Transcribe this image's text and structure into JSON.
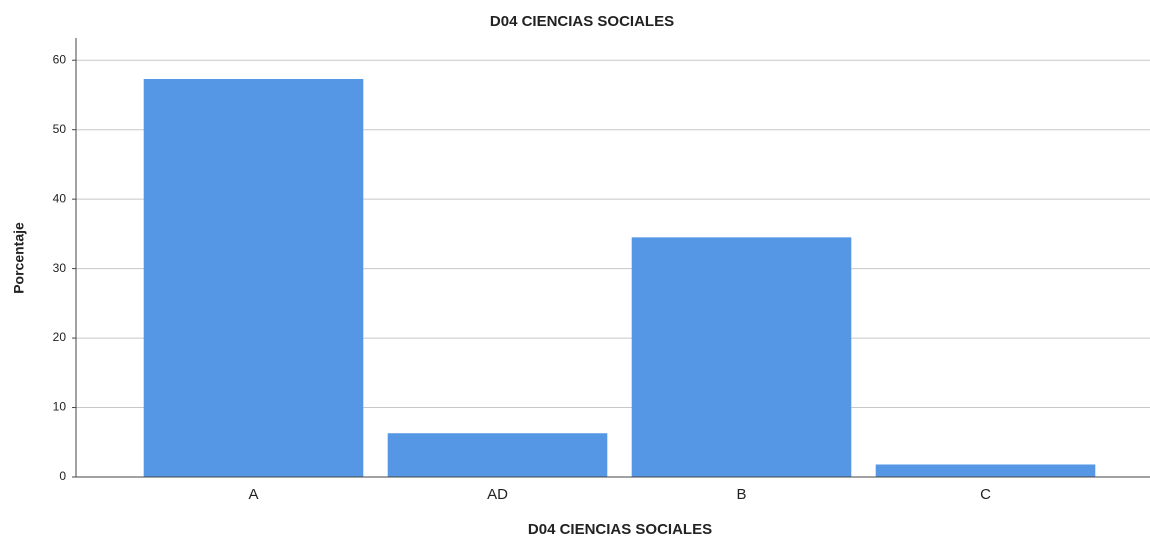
{
  "chart_data": {
    "type": "bar",
    "title": "D04 CIENCIAS SOCIALES",
    "x_label": "D04 CIENCIAS SOCIALES",
    "y_label": "Porcentaje",
    "categories": [
      "A",
      "AD",
      "B",
      "C"
    ],
    "values": [
      57.3,
      6.3,
      34.5,
      1.8
    ],
    "color": "#5596e5",
    "ylim": [
      0,
      63.2
    ],
    "yticks": [
      0,
      10,
      20,
      30,
      40,
      50,
      60
    ],
    "grid": true
  }
}
